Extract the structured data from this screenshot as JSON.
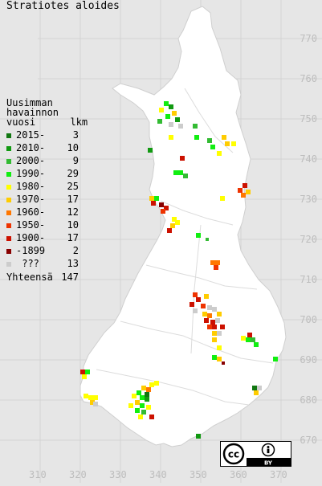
{
  "title": "Stratiotes aloides",
  "legend": {
    "header_lines": [
      "Uusimman",
      "havainnon",
      "vuosi      lkm"
    ],
    "items": [
      {
        "label": "2015-",
        "count": "3",
        "color": "#117711"
      },
      {
        "label": "2010-",
        "count": "10",
        "color": "#119911"
      },
      {
        "label": "2000-",
        "count": "9",
        "color": "#33bb33"
      },
      {
        "label": "1990-",
        "count": "29",
        "color": "#11ee11"
      },
      {
        "label": "1980-",
        "count": "25",
        "color": "#ffff00"
      },
      {
        "label": "1970-",
        "count": "17",
        "color": "#ffcc00"
      },
      {
        "label": "1960-",
        "count": "12",
        "color": "#ff7700"
      },
      {
        "label": "1950-",
        "count": "10",
        "color": "#ee3300"
      },
      {
        "label": "1900-",
        "count": "17",
        "color": "#cc1100"
      },
      {
        "label": "-1899",
        "count": "2",
        "color": "#880000"
      },
      {
        "label": " ???",
        "count": "13",
        "color": "#cccccc"
      }
    ],
    "total_label": "Yhteensä",
    "total_count": "147"
  },
  "grid": {
    "y_labels": [
      "770",
      "760",
      "750",
      "740",
      "730",
      "720",
      "710",
      "700",
      "690",
      "680",
      "670"
    ],
    "x_labels": [
      "310",
      "320",
      "330",
      "340",
      "350",
      "360",
      "370"
    ]
  },
  "license": {
    "badge": "cc-by-badge",
    "by_text": "BY"
  },
  "colors": {
    "background": "#e6e6e6",
    "land": "#ffffff",
    "borders": "#d8d8d8",
    "labels": "#bdbdbd"
  }
}
